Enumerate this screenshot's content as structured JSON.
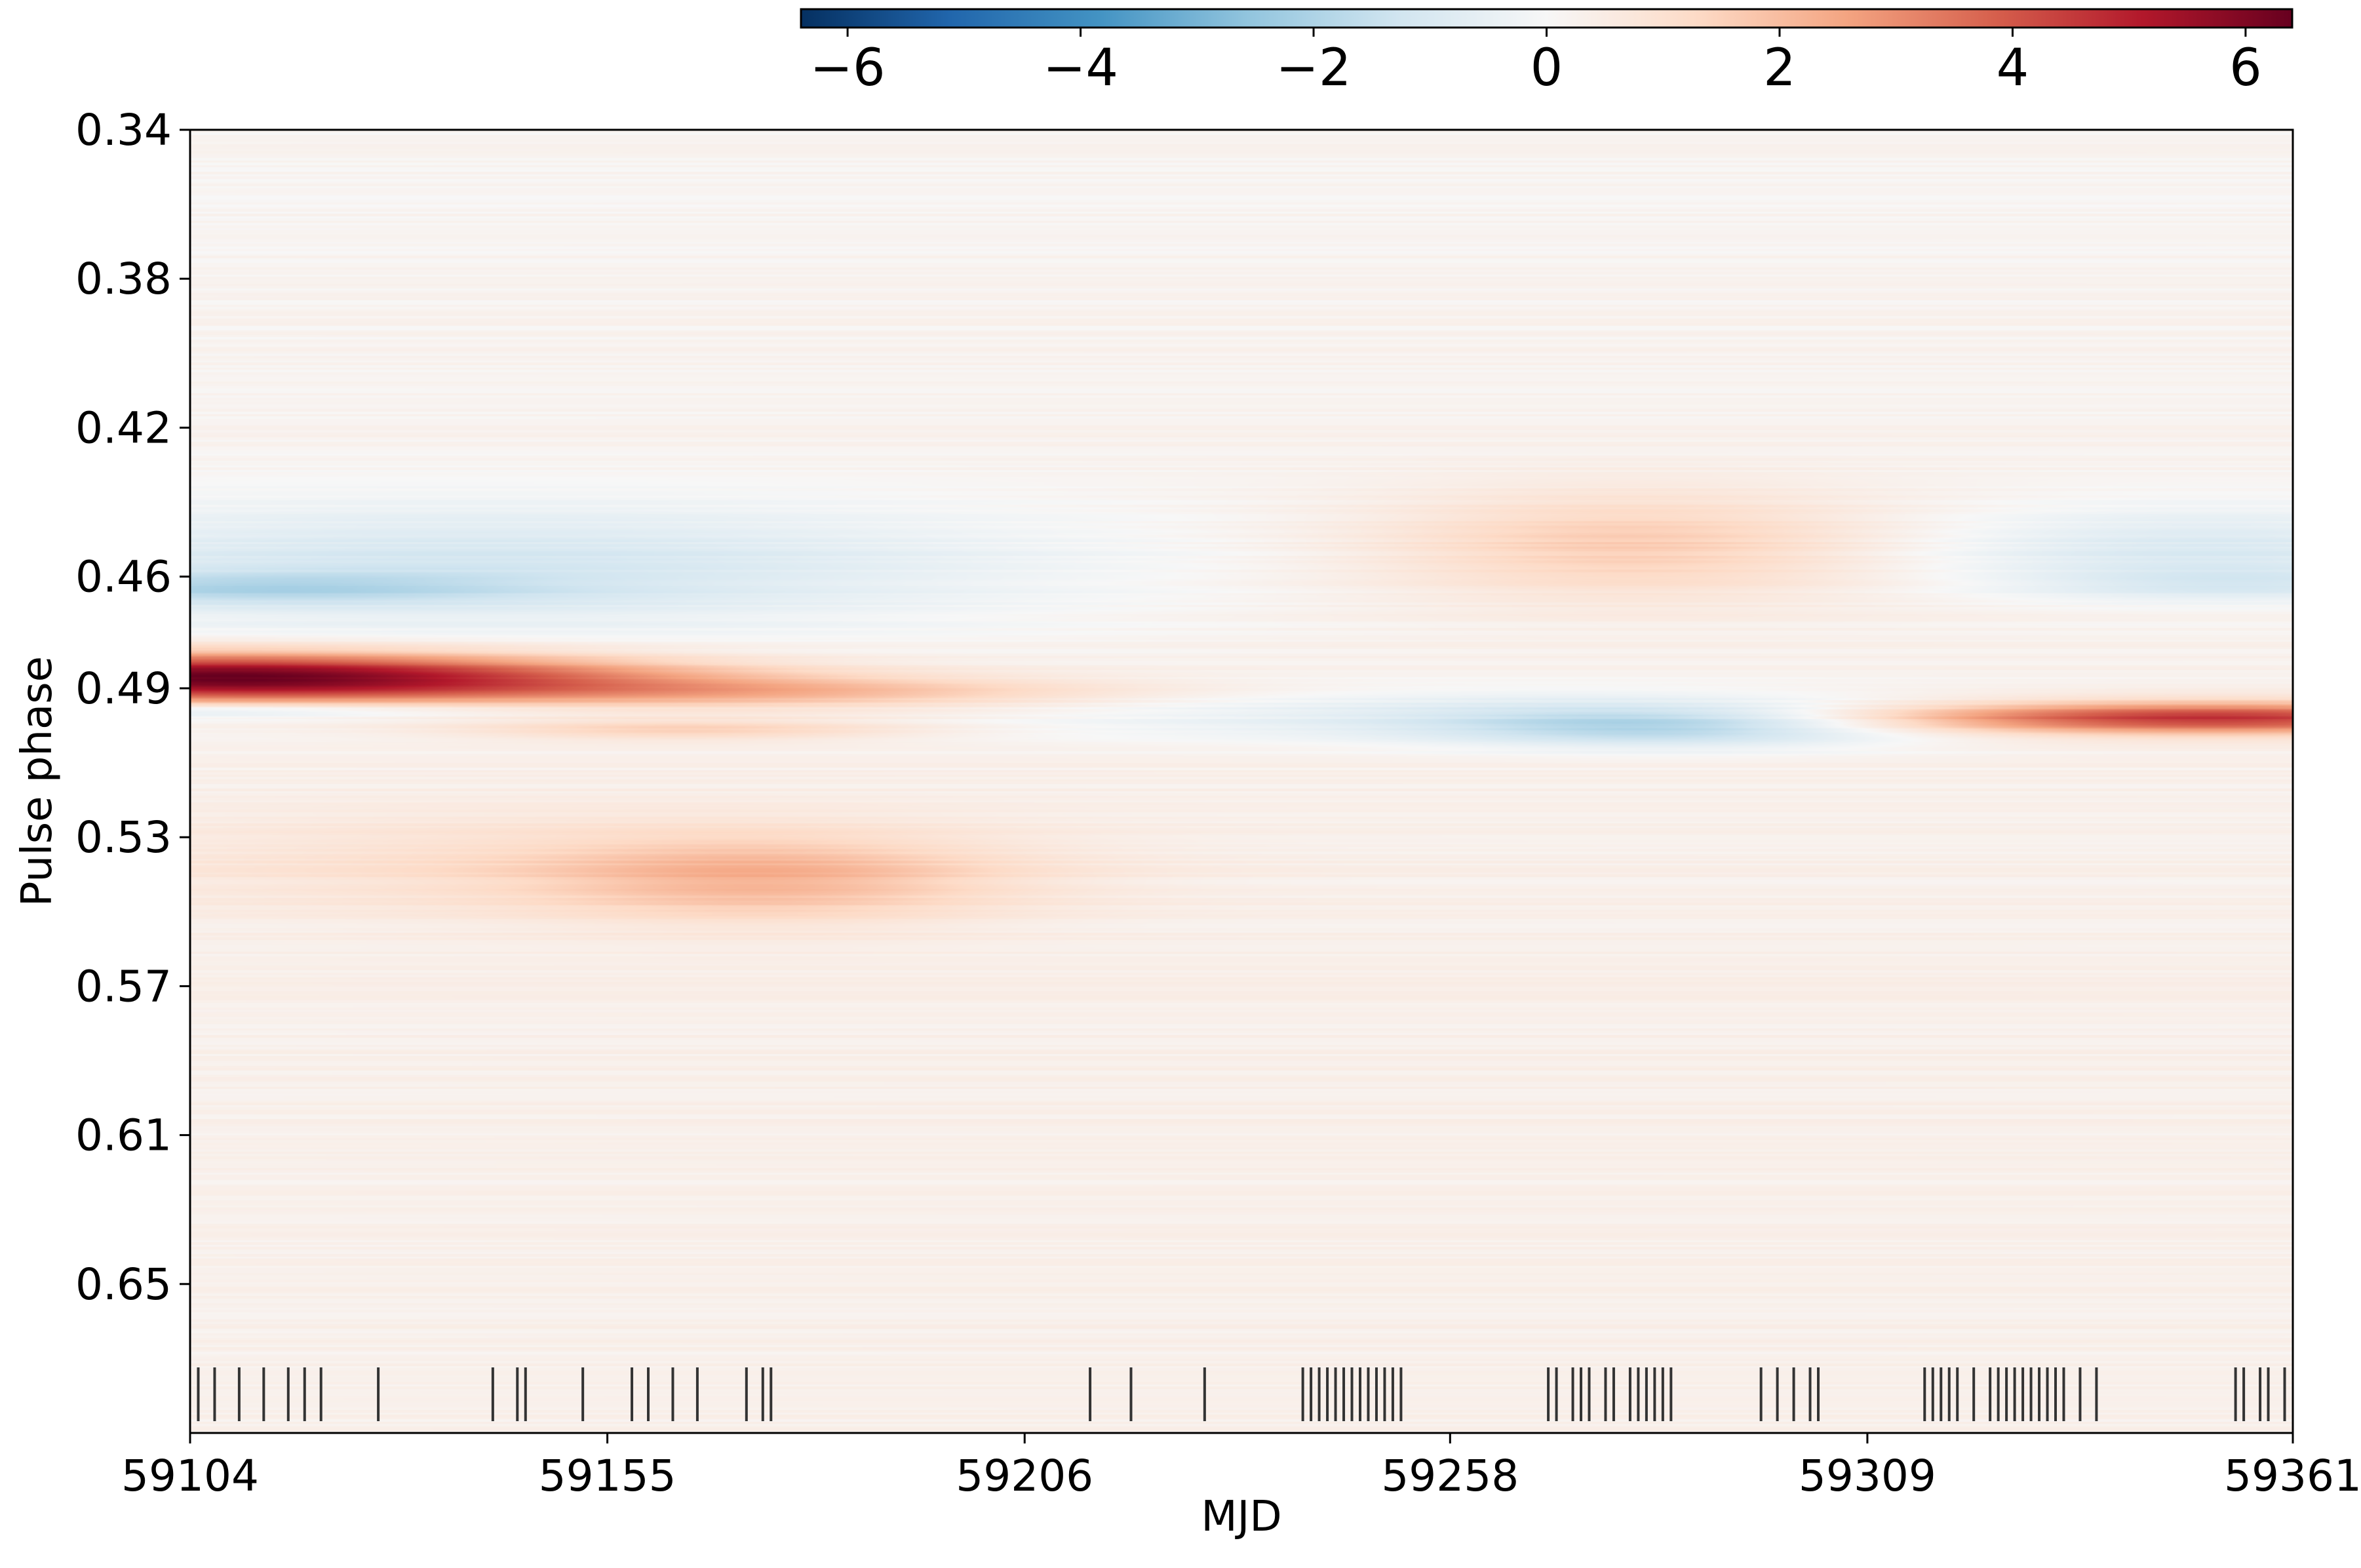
{
  "chart_data": {
    "type": "heatmap",
    "title": "",
    "xlabel": "MJD",
    "ylabel": "Pulse phase",
    "xlim": [
      59104,
      59361
    ],
    "ylim": [
      0.34,
      0.69
    ],
    "y_inverted": true,
    "x_ticks": [
      "59104",
      "59155",
      "59206",
      "59258",
      "59309",
      "59361"
    ],
    "x_tick_values": [
      59104,
      59155,
      59206,
      59258,
      59309,
      59361
    ],
    "y_ticks": [
      "0.34",
      "0.38",
      "0.42",
      "0.46",
      "0.49",
      "0.53",
      "0.57",
      "0.61",
      "0.65"
    ],
    "y_tick_values": [
      0.34,
      0.38,
      0.42,
      0.46,
      0.49,
      0.53,
      0.57,
      0.61,
      0.65
    ],
    "colorbar": {
      "colormap": "RdBu_r",
      "range": [
        -6.4,
        6.4
      ],
      "ticks": [
        "−6",
        "−4",
        "−2",
        "0",
        "2",
        "4",
        "6"
      ],
      "tick_values": [
        -6,
        -4,
        -2,
        0,
        2,
        4,
        6
      ],
      "placement": "top"
    },
    "features": [
      {
        "mjd_center": 59108,
        "mjd_sigma": 36,
        "phase_center": 0.487,
        "phase_sigma": 0.0045,
        "value": 6.2
      },
      {
        "mjd_center": 59175,
        "mjd_sigma": 30,
        "phase_center": 0.491,
        "phase_sigma": 0.003,
        "value": 1.6
      },
      {
        "mjd_center": 59165,
        "mjd_sigma": 20,
        "phase_center": 0.501,
        "phase_sigma": 0.002,
        "value": 1.3
      },
      {
        "mjd_center": 59104,
        "mjd_sigma": 28,
        "phase_center": 0.496,
        "phase_sigma": 0.0015,
        "value": -1.5
      },
      {
        "mjd_center": 59140,
        "mjd_sigma": 50,
        "phase_center": 0.458,
        "phase_sigma": 0.012,
        "value": -1.4
      },
      {
        "mjd_center": 59110,
        "mjd_sigma": 25,
        "phase_center": 0.463,
        "phase_sigma": 0.003,
        "value": -1.3
      },
      {
        "mjd_center": 59175,
        "mjd_sigma": 20,
        "phase_center": 0.541,
        "phase_sigma": 0.008,
        "value": 1.5
      },
      {
        "mjd_center": 59145,
        "mjd_sigma": 40,
        "phase_center": 0.537,
        "phase_sigma": 0.01,
        "value": 0.7
      },
      {
        "mjd_center": 59280,
        "mjd_sigma": 22,
        "phase_center": 0.451,
        "phase_sigma": 0.01,
        "value": 1.4
      },
      {
        "mjd_center": 59285,
        "mjd_sigma": 20,
        "phase_center": 0.5,
        "phase_sigma": 0.004,
        "value": -1.9
      },
      {
        "mjd_center": 59260,
        "mjd_sigma": 40,
        "phase_center": 0.497,
        "phase_sigma": 0.005,
        "value": -0.9
      },
      {
        "mjd_center": 59350,
        "mjd_sigma": 30,
        "phase_center": 0.498,
        "phase_sigma": 0.003,
        "value": 4.4
      },
      {
        "mjd_center": 59350,
        "mjd_sigma": 25,
        "phase_center": 0.453,
        "phase_sigma": 0.008,
        "value": -1.2
      },
      {
        "mjd_center": 59355,
        "mjd_sigma": 20,
        "phase_center": 0.462,
        "phase_sigma": 0.003,
        "value": -0.9
      },
      {
        "mjd_center": 59250,
        "mjd_sigma": 300,
        "phase_center": 0.6,
        "phase_sigma": 0.2,
        "value": 0.35
      }
    ],
    "observation_epochs": [
      59105,
      59107,
      59110,
      59113,
      59116,
      59118,
      59120,
      59127,
      59141,
      59144,
      59145,
      59152,
      59158,
      59160,
      59163,
      59166,
      59172,
      59174,
      59175,
      59214,
      59219,
      59228,
      59240,
      59241,
      59242,
      59243,
      59244,
      59245,
      59246,
      59247,
      59248,
      59249,
      59250,
      59251,
      59252,
      59270,
      59271,
      59273,
      59274,
      59275,
      59277,
      59278,
      59280,
      59281,
      59282,
      59283,
      59284,
      59285,
      59296,
      59298,
      59300,
      59302,
      59303,
      59316,
      59317,
      59318,
      59319,
      59320,
      59322,
      59324,
      59325,
      59326,
      59327,
      59328,
      59329,
      59330,
      59331,
      59332,
      59333,
      59335,
      59337,
      59354,
      59355,
      59357,
      59358,
      59360
    ]
  }
}
